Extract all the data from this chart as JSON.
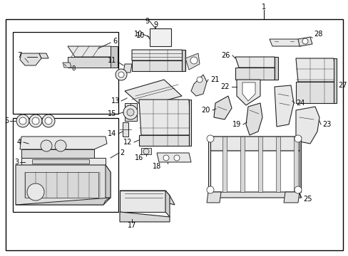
{
  "bg": "#ffffff",
  "lc": "#222222",
  "bc": "#000000",
  "tc": "#000000",
  "fc": "#f0f0f0",
  "fs": 7,
  "figsize": [
    4.89,
    3.6
  ],
  "dpi": 100
}
